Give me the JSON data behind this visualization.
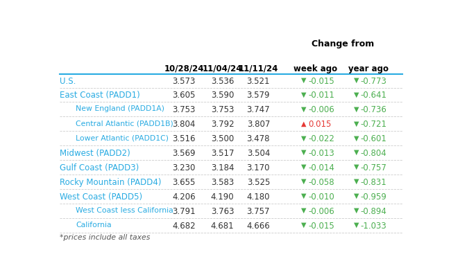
{
  "header_line1": "Change from",
  "col_headers": [
    "10/28/24",
    "11/04/24",
    "11/11/24",
    "week ago",
    "year ago"
  ],
  "rows": [
    {
      "label": "U.S.",
      "indent": 0,
      "vals": [
        3.573,
        3.536,
        3.521
      ],
      "week": -0.015,
      "year": -0.773,
      "week_up": false,
      "year_up": false
    },
    {
      "label": "East Coast (PADD1)",
      "indent": 0,
      "vals": [
        3.605,
        3.59,
        3.579
      ],
      "week": -0.011,
      "year": -0.641,
      "week_up": false,
      "year_up": false
    },
    {
      "label": "New England (PADD1A)",
      "indent": 1,
      "vals": [
        3.753,
        3.753,
        3.747
      ],
      "week": -0.006,
      "year": -0.736,
      "week_up": false,
      "year_up": false
    },
    {
      "label": "Central Atlantic (PADD1B)",
      "indent": 1,
      "vals": [
        3.804,
        3.792,
        3.807
      ],
      "week": 0.015,
      "year": -0.721,
      "week_up": true,
      "year_up": false
    },
    {
      "label": "Lower Atlantic (PADD1C)",
      "indent": 1,
      "vals": [
        3.516,
        3.5,
        3.478
      ],
      "week": -0.022,
      "year": -0.601,
      "week_up": false,
      "year_up": false
    },
    {
      "label": "Midwest (PADD2)",
      "indent": 0,
      "vals": [
        3.569,
        3.517,
        3.504
      ],
      "week": -0.013,
      "year": -0.804,
      "week_up": false,
      "year_up": false
    },
    {
      "label": "Gulf Coast (PADD3)",
      "indent": 0,
      "vals": [
        3.23,
        3.184,
        3.17
      ],
      "week": -0.014,
      "year": -0.757,
      "week_up": false,
      "year_up": false
    },
    {
      "label": "Rocky Mountain (PADD4)",
      "indent": 0,
      "vals": [
        3.655,
        3.583,
        3.525
      ],
      "week": -0.058,
      "year": -0.831,
      "week_up": false,
      "year_up": false
    },
    {
      "label": "West Coast (PADD5)",
      "indent": 0,
      "vals": [
        4.206,
        4.19,
        4.18
      ],
      "week": -0.01,
      "year": -0.959,
      "week_up": false,
      "year_up": false
    },
    {
      "label": "West Coast less California",
      "indent": 1,
      "vals": [
        3.791,
        3.763,
        3.757
      ],
      "week": -0.006,
      "year": -0.894,
      "week_up": false,
      "year_up": false
    },
    {
      "label": "California",
      "indent": 1,
      "vals": [
        4.682,
        4.681,
        4.666
      ],
      "week": -0.015,
      "year": -1.033,
      "week_up": false,
      "year_up": false
    }
  ],
  "footnote": "*prices include all taxes",
  "bg_color": "#ffffff",
  "header_color": "#000000",
  "label_color_main": "#29abe2",
  "label_color_sub": "#29abe2",
  "val_color": "#333333",
  "down_arrow_color_week": "#4caf50",
  "up_arrow_color_week": "#e53935",
  "down_arrow_color_year": "#4caf50",
  "divider_color": "#cccccc",
  "header_divider_color": "#29abe2",
  "footnote_color": "#555555"
}
